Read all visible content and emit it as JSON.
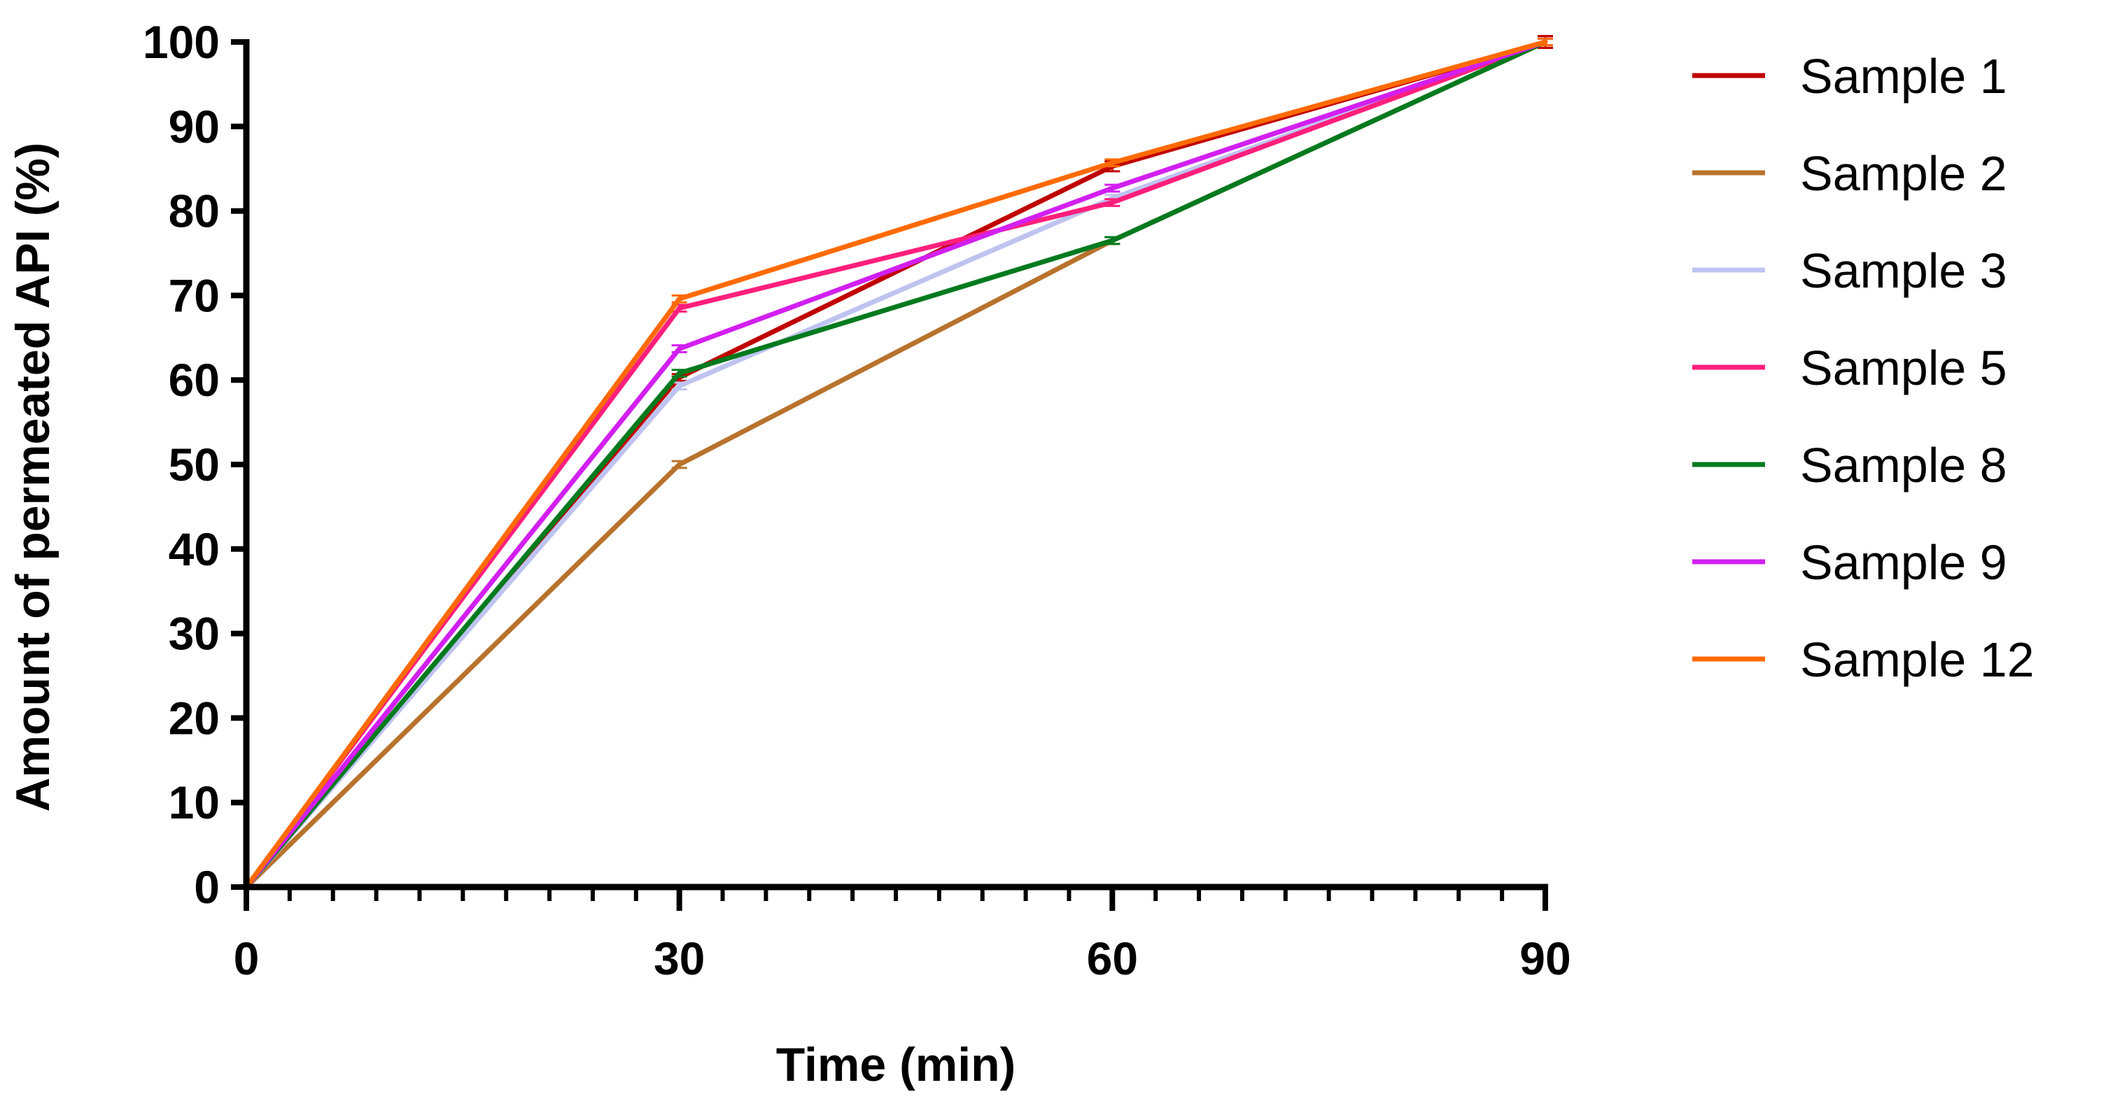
{
  "chart_data": {
    "type": "line",
    "title": "",
    "xlabel": "Time (min)",
    "ylabel": "Amount of permeated API (%)",
    "xlim": [
      0,
      90
    ],
    "ylim": [
      0,
      100
    ],
    "x_ticks": [
      0,
      30,
      60,
      90
    ],
    "x_minor_step": 3,
    "y_ticks": [
      0,
      10,
      20,
      30,
      40,
      50,
      60,
      70,
      80,
      90,
      100
    ],
    "grid": false,
    "legend_position": "right",
    "x": [
      0,
      30,
      60,
      90
    ],
    "series": [
      {
        "name": "Sample 1",
        "color": "#C00000",
        "values": [
          0,
          60.3,
          85.3,
          100
        ],
        "errors": [
          0,
          0.4,
          0.6,
          0.7
        ]
      },
      {
        "name": "Sample 2",
        "color": "#B8722C",
        "values": [
          0,
          50.0,
          76.5,
          100
        ],
        "errors": [
          0,
          0.4,
          0.4,
          0.4
        ]
      },
      {
        "name": "Sample 3",
        "color": "#BFC3F0",
        "values": [
          0,
          59.3,
          81.5,
          100
        ],
        "errors": [
          0,
          0.4,
          0.4,
          0.4
        ]
      },
      {
        "name": "Sample 5",
        "color": "#FF1F7C",
        "values": [
          0,
          68.5,
          81.0,
          100
        ],
        "errors": [
          0,
          0.4,
          0.4,
          0.4
        ]
      },
      {
        "name": "Sample 8",
        "color": "#007A1E",
        "values": [
          0,
          60.8,
          76.5,
          100
        ],
        "errors": [
          0,
          0.4,
          0.4,
          0.4
        ]
      },
      {
        "name": "Sample 9",
        "color": "#D21FF0",
        "values": [
          0,
          63.7,
          82.7,
          100
        ],
        "errors": [
          0,
          0.4,
          0.4,
          0.4
        ]
      },
      {
        "name": "Sample 12",
        "color": "#FF6A00",
        "values": [
          0,
          69.6,
          85.7,
          100
        ],
        "errors": [
          0,
          0.4,
          0.4,
          0.4
        ]
      }
    ]
  }
}
